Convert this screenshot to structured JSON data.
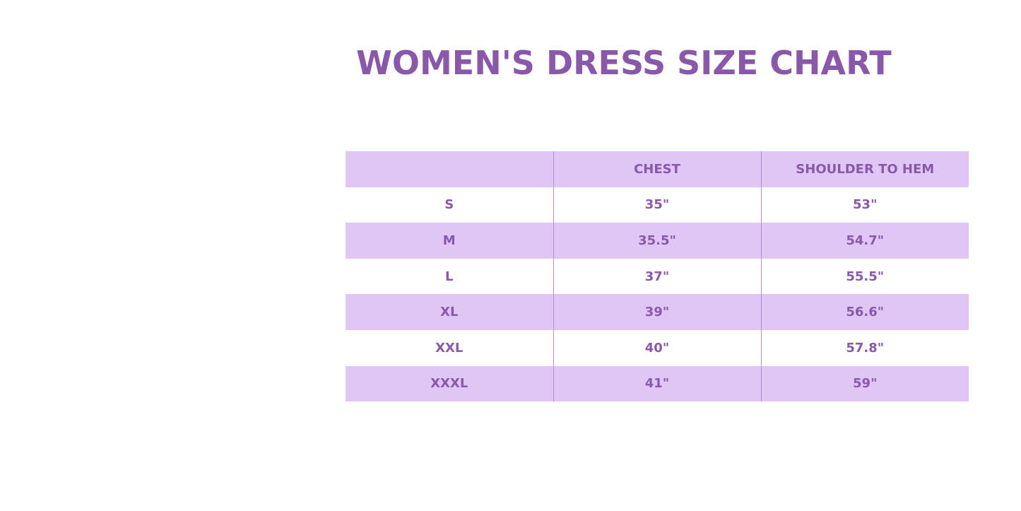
{
  "title": "WOMEN'S DRESS SIZE CHART",
  "colors": {
    "accent": "#8a58ab",
    "row_shade": "#e0c6f4"
  },
  "table": {
    "headers": [
      "",
      "CHEST",
      "SHOULDER TO HEM"
    ],
    "rows": [
      [
        "S",
        "35\"",
        "53\""
      ],
      [
        "M",
        "35.5\"",
        "54.7\""
      ],
      [
        "L",
        "37\"",
        "55.5\""
      ],
      [
        "XL",
        "39\"",
        "56.6\""
      ],
      [
        "XXL",
        "40\"",
        "57.8\""
      ],
      [
        "XXXL",
        "41\"",
        "59\""
      ]
    ]
  }
}
